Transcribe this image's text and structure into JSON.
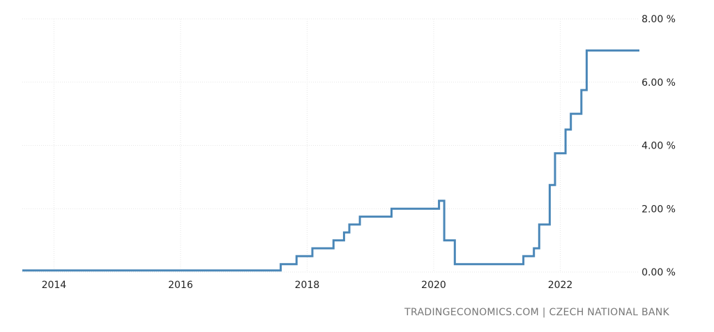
{
  "chart_data": {
    "type": "line",
    "step": true,
    "title": "",
    "xlabel": "",
    "ylabel": "",
    "x_tick_labels": [
      "2014",
      "2016",
      "2018",
      "2020",
      "2022"
    ],
    "y_tick_labels": [
      "0.00 %",
      "2.00 %",
      "4.00 %",
      "6.00 %",
      "8.00 %"
    ],
    "xlim": [
      "2013-07",
      "2023-04"
    ],
    "ylim": [
      0,
      8
    ],
    "grid": true,
    "y_axis_side": "right",
    "line_color": "#4a87b8",
    "series": [
      {
        "points": [
          [
            "2013-07",
            0.05
          ],
          [
            "2017-08",
            0.25
          ],
          [
            "2017-11",
            0.5
          ],
          [
            "2018-02",
            0.75
          ],
          [
            "2018-06",
            1.0
          ],
          [
            "2018-08",
            1.25
          ],
          [
            "2018-09",
            1.5
          ],
          [
            "2018-11",
            1.75
          ],
          [
            "2019-05",
            2.0
          ],
          [
            "2020-02",
            2.25
          ],
          [
            "2020-03",
            1.75
          ],
          [
            "2020-03",
            1.0
          ],
          [
            "2020-05",
            0.25
          ],
          [
            "2021-06",
            0.5
          ],
          [
            "2021-08",
            0.75
          ],
          [
            "2021-09",
            1.5
          ],
          [
            "2021-11",
            2.75
          ],
          [
            "2021-12",
            3.75
          ],
          [
            "2022-02",
            4.5
          ],
          [
            "2022-03",
            5.0
          ],
          [
            "2022-05",
            5.75
          ],
          [
            "2022-06",
            7.0
          ],
          [
            "2023-04",
            7.0
          ]
        ]
      }
    ]
  },
  "source_text": "TRADINGECONOMICS.COM | CZECH NATIONAL BANK"
}
